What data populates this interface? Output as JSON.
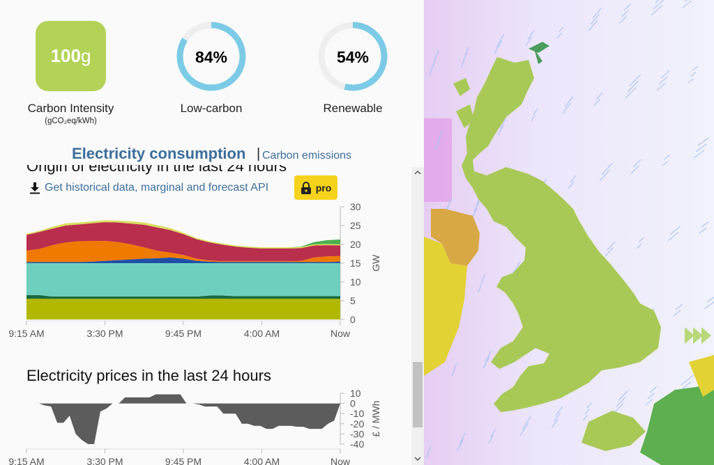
{
  "metrics": {
    "carbon_intensity": {
      "value": "100",
      "unit": "g",
      "label": "Carbon Intensity",
      "sublabel": "(gCO₂eq/kWh)",
      "color": "#b3d357"
    },
    "low_carbon": {
      "value": "84%",
      "label": "Low-carbon",
      "percent": 84
    },
    "renewable": {
      "value": "54%",
      "label": "Renewable",
      "percent": 54
    },
    "ring_color": "#7ccbe6",
    "ring_track_color": "#eeeeee"
  },
  "toggle": {
    "active": "Electricity consumption",
    "separator": "|",
    "inactive": "Carbon emissions"
  },
  "origin_chart": {
    "title": "Origin of electricity in the last 24 hours",
    "api_link": "Get historical data, marginal and forecast API",
    "pro_badge": "pro"
  },
  "prices_chart": {
    "title": "Electricity prices in the last 24 hours"
  },
  "chart_data": [
    {
      "type": "area",
      "title": "Origin of electricity in the last 24 hours",
      "ylabel": "GW",
      "ylim": [
        0,
        30
      ],
      "yticks": [
        "30",
        "25",
        "20",
        "15",
        "10",
        "5",
        "0"
      ],
      "xtick_labels": [
        "9:15 AM",
        "3:30 PM",
        "9:45 PM",
        "4:00 AM",
        "Now"
      ],
      "series": [
        {
          "color": "#b2b800",
          "values": [
            5.5,
            5.5,
            5.5,
            5.5,
            5.5,
            5.5,
            5.5,
            5.5,
            5.5,
            5.5,
            5.5,
            5.5,
            5.5,
            5.5,
            5.5,
            5.5,
            5.5,
            5.5,
            5.5,
            5.5,
            5.5,
            5.5,
            5.5,
            5.5,
            5.5
          ]
        },
        {
          "color": "#1c6a3c",
          "values": [
            1,
            1,
            0.6,
            0.6,
            0.6,
            0.6,
            0.6,
            0.6,
            0.6,
            0.6,
            0.6,
            0.6,
            0.6,
            0.6,
            0.9,
            0.9,
            0.7,
            0.7,
            0.7,
            0.7,
            0.7,
            0.7,
            0.7,
            0.7,
            0.7
          ]
        },
        {
          "color": "#6fcfbf",
          "values": [
            8.5,
            8.5,
            8.9,
            8.9,
            8.9,
            8.9,
            8.9,
            8.9,
            8.9,
            8.9,
            8.9,
            8.9,
            8.9,
            8.9,
            8.6,
            8.6,
            8.8,
            8.8,
            8.8,
            8.8,
            8.8,
            8.8,
            8.8,
            8.8,
            8.8
          ]
        },
        {
          "color": "#1f4fa8",
          "values": [
            0.3,
            0.3,
            0.3,
            0.3,
            0.3,
            0.4,
            0.6,
            0.8,
            1,
            1.2,
            1.3,
            1.5,
            1.2,
            0.6,
            0.4,
            0.3,
            0.3,
            0.3,
            0.3,
            0.3,
            0.3,
            0.3,
            0.3,
            0.3,
            0.4
          ]
        },
        {
          "color": "#f07a00",
          "values": [
            3,
            3.5,
            4.5,
            5.2,
            5.5,
            5.5,
            5.3,
            4.8,
            4,
            3,
            2,
            1.3,
            1,
            0.6,
            0.3,
            0.2,
            0.2,
            0.2,
            0.2,
            0.2,
            0.2,
            0.3,
            1.2,
            1.5,
            1.5
          ]
        },
        {
          "color": "#b92d4d",
          "values": [
            4.2,
            4.5,
            4.4,
            4.5,
            4.5,
            4.7,
            5,
            5.2,
            5.5,
            6,
            6.2,
            6,
            5.5,
            5.2,
            4.8,
            4.4,
            3.9,
            3.6,
            3.4,
            3.4,
            3.4,
            3.4,
            3.2,
            3,
            2.8
          ]
        },
        {
          "color": "#dadd5c",
          "values": [
            0.3,
            0.3,
            0.5,
            0.6,
            0.5,
            0.5,
            0.5,
            0.5,
            0.6,
            0.6,
            0.6,
            0.5,
            0.4,
            0.3,
            0.3,
            0.3,
            0.3,
            0.3,
            0.3,
            0.3,
            0.3,
            0.3,
            0.3,
            0.3,
            0.3
          ]
        },
        {
          "color": "#4caf50",
          "values": [
            0,
            0,
            0,
            0,
            0,
            0,
            0,
            0,
            0,
            0,
            0,
            0,
            0,
            0,
            0,
            0,
            0,
            0,
            0,
            0,
            0,
            0.1,
            0.6,
            1,
            1.3
          ]
        }
      ]
    },
    {
      "type": "area",
      "title": "Electricity prices in the last 24 hours",
      "ylabel": "£ / MWh",
      "ylim": [
        -40,
        10
      ],
      "yticks": [
        "10",
        "0",
        "-10",
        "-20",
        "-30",
        "-40"
      ],
      "xtick_labels": [
        "9:15 AM",
        "3:30 PM",
        "9:45 PM",
        "4:00 AM",
        "Now"
      ],
      "series": [
        {
          "color": "#5c5c5c",
          "values": [
            0,
            0,
            0,
            -2,
            -3,
            -19,
            -19,
            -12,
            -30,
            -36,
            -40,
            -40,
            -8,
            -5,
            0,
            0,
            6,
            6,
            6,
            6,
            6,
            9,
            9,
            9,
            9,
            9,
            0,
            0,
            -1,
            -3,
            -3,
            -3,
            -10,
            -10,
            -10,
            -20,
            -20,
            -22,
            -22,
            -25,
            -25,
            -22,
            -22,
            -22,
            -23,
            -23,
            -25,
            -25,
            -25,
            -20,
            -17,
            0
          ]
        }
      ]
    }
  ],
  "map": {
    "low_color": "#a9c957",
    "mid_color": "#e2d233",
    "high_color": "#d8a845",
    "green_color": "#5daf4f"
  }
}
